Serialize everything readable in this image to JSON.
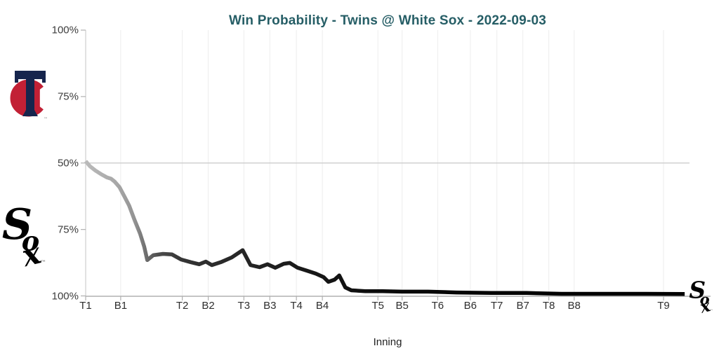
{
  "page": {
    "background": "#ffffff"
  },
  "chart": {
    "title": "Win Probability - Twins @ White Sox - 2022-09-03",
    "title_color": "#265e66",
    "x_label": "Inning"
  },
  "teams": {
    "away": {
      "name": "Minnesota Twins",
      "logo": "twins-tc-logo",
      "navy": "#16254d",
      "red": "#c22035"
    },
    "home": {
      "name": "Chicago White Sox",
      "logo": "white-sox-logo",
      "black": "#000000"
    }
  },
  "chart_data": {
    "type": "line",
    "title": "Win Probability - Twins @ White Sox - 2022-09-03",
    "xlabel": "Inning",
    "ylabel": "",
    "grid": "vertical gridlines at each inning tick plus horizontal 50% midline",
    "legend": "none; team logos identify axis halves (top half = Twins, bottom half = White Sox)",
    "x_axis": {
      "ticks": [
        {
          "label": "T1",
          "pos": 0.0
        },
        {
          "label": "B1",
          "pos": 0.058
        },
        {
          "label": "T2",
          "pos": 0.16
        },
        {
          "label": "B2",
          "pos": 0.203
        },
        {
          "label": "T3",
          "pos": 0.262
        },
        {
          "label": "B3",
          "pos": 0.305
        },
        {
          "label": "T4",
          "pos": 0.349
        },
        {
          "label": "B4",
          "pos": 0.392
        },
        {
          "label": "T5",
          "pos": 0.484
        },
        {
          "label": "B5",
          "pos": 0.524
        },
        {
          "label": "T6",
          "pos": 0.583
        },
        {
          "label": "B6",
          "pos": 0.637
        },
        {
          "label": "T7",
          "pos": 0.681
        },
        {
          "label": "B7",
          "pos": 0.724
        },
        {
          "label": "T8",
          "pos": 0.767
        },
        {
          "label": "B8",
          "pos": 0.809
        },
        {
          "label": "T9",
          "pos": 0.957
        }
      ]
    },
    "y_axis": {
      "top_half": "Twins win probability",
      "bottom_half": "White Sox win probability",
      "midline_wp": 50,
      "ticks": [
        {
          "label": "100%",
          "twins_wp": 100
        },
        {
          "label": "75%",
          "twins_wp": 75
        },
        {
          "label": "50%",
          "twins_wp": 50
        },
        {
          "label": "75%",
          "twins_wp": 25
        },
        {
          "label": "100%",
          "twins_wp": 0
        }
      ]
    },
    "series": [
      {
        "name": "White Sox win probability",
        "points_format": [
          "x_fraction_of_plot_width",
          "white_sox_win_pct"
        ],
        "points": [
          [
            0.0,
            49.3
          ],
          [
            0.007,
            51.2
          ],
          [
            0.016,
            52.8
          ],
          [
            0.027,
            54.4
          ],
          [
            0.035,
            55.4
          ],
          [
            0.042,
            55.9
          ],
          [
            0.048,
            57.0
          ],
          [
            0.056,
            59.1
          ],
          [
            0.064,
            62.5
          ],
          [
            0.072,
            66.0
          ],
          [
            0.081,
            71.5
          ],
          [
            0.09,
            76.5
          ],
          [
            0.097,
            81.5
          ],
          [
            0.102,
            86.5
          ],
          [
            0.112,
            84.7
          ],
          [
            0.128,
            84.2
          ],
          [
            0.143,
            84.4
          ],
          [
            0.158,
            86.3
          ],
          [
            0.174,
            87.3
          ],
          [
            0.188,
            88.1
          ],
          [
            0.199,
            87.1
          ],
          [
            0.209,
            88.4
          ],
          [
            0.224,
            87.3
          ],
          [
            0.242,
            85.5
          ],
          [
            0.26,
            82.8
          ],
          [
            0.273,
            88.4
          ],
          [
            0.288,
            89.2
          ],
          [
            0.301,
            88.1
          ],
          [
            0.314,
            89.4
          ],
          [
            0.328,
            87.9
          ],
          [
            0.338,
            87.6
          ],
          [
            0.351,
            89.4
          ],
          [
            0.366,
            90.5
          ],
          [
            0.381,
            91.6
          ],
          [
            0.394,
            92.9
          ],
          [
            0.402,
            94.7
          ],
          [
            0.412,
            93.9
          ],
          [
            0.42,
            92.3
          ],
          [
            0.43,
            96.8
          ],
          [
            0.44,
            97.9
          ],
          [
            0.463,
            98.2
          ],
          [
            0.492,
            98.2
          ],
          [
            0.524,
            98.4
          ],
          [
            0.567,
            98.4
          ],
          [
            0.614,
            98.7
          ],
          [
            0.672,
            98.9
          ],
          [
            0.73,
            98.9
          ],
          [
            0.788,
            99.2
          ],
          [
            0.858,
            99.2
          ],
          [
            0.928,
            99.2
          ],
          [
            0.992,
            99.3
          ]
        ]
      }
    ],
    "line_gradient": [
      {
        "offset": 0.0,
        "color": "#bababa"
      },
      {
        "offset": 0.05,
        "color": "#a8a8a8"
      },
      {
        "offset": 0.08,
        "color": "#949494"
      },
      {
        "offset": 0.1,
        "color": "#6e6e6e"
      },
      {
        "offset": 0.12,
        "color": "#4e4e4e"
      },
      {
        "offset": 0.16,
        "color": "#343434"
      },
      {
        "offset": 0.24,
        "color": "#282828"
      },
      {
        "offset": 0.35,
        "color": "#1a1a1a"
      },
      {
        "offset": 0.5,
        "color": "#0a0a0a"
      },
      {
        "offset": 0.7,
        "color": "#000000"
      }
    ],
    "end_marker": "white-sox-logo"
  }
}
